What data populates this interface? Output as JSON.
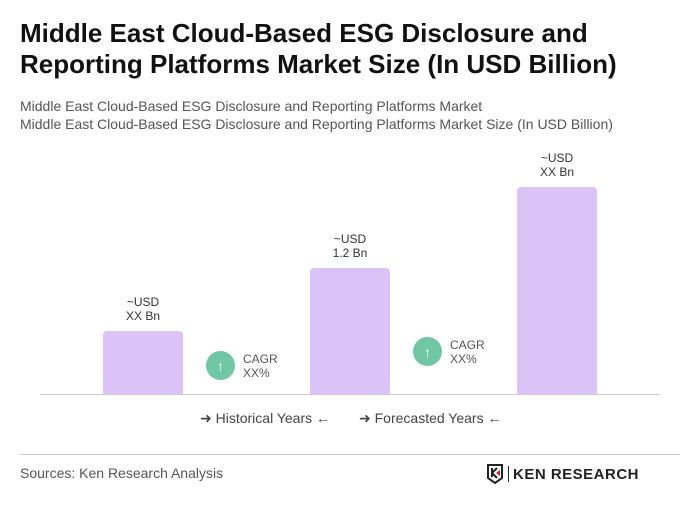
{
  "title": "Middle East Cloud-Based ESG Disclosure and Reporting Platforms Market Size (In USD Billion)",
  "subtitle1": "Middle East Cloud-Based ESG Disclosure and Reporting Platforms Market",
  "subtitle2": "Middle East Cloud-Based ESG Disclosure and Reporting Platforms Market Size (In USD Billion)",
  "chart_data": {
    "type": "bar",
    "categories": [
      "",
      "",
      ""
    ],
    "values": [
      0.6,
      1.2,
      1.97
    ],
    "data_labels": [
      [
        "~USD",
        "XX Bn"
      ],
      [
        "~USD",
        "1.2 Bn"
      ],
      [
        "~USD",
        "XX Bn"
      ]
    ],
    "bar_color": "#dcc3f7",
    "cagr": [
      {
        "label": "CAGR",
        "value": "XX%"
      },
      {
        "label": "CAGR",
        "value": "XX%"
      }
    ],
    "cagr_color": "#6fc7a3",
    "legend": [
      "Historical Years",
      "Forecasted Years"
    ],
    "grid": false
  },
  "sources": "Sources: Ken Research Analysis",
  "logo": "KEN RESEARCH"
}
